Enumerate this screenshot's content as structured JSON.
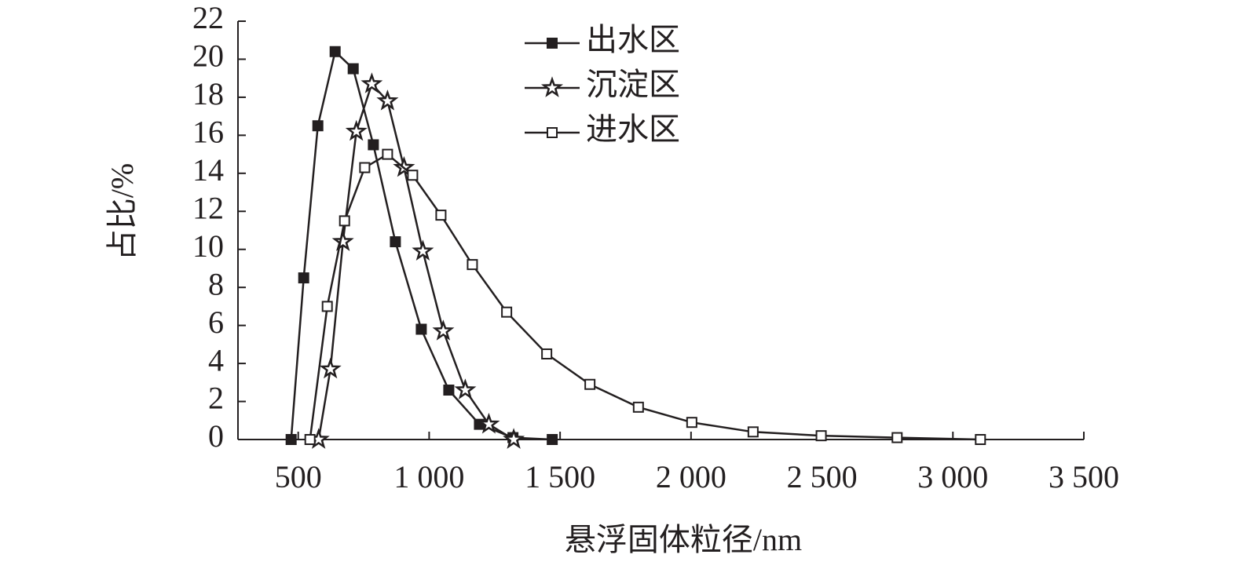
{
  "chart_data": {
    "type": "line",
    "x_label": "悬浮固体粒径/nm",
    "y_label": "占比/%",
    "xlim": [
      270,
      3500
    ],
    "ylim": [
      0,
      22
    ],
    "xticks": [
      500,
      {
        "value": 1000,
        "label": "1 000"
      },
      {
        "value": 1500,
        "label": "1 500"
      },
      {
        "value": 2000,
        "label": "2 000"
      },
      {
        "value": 2500,
        "label": "2 500"
      },
      {
        "value": 3000,
        "label": "3 000"
      },
      {
        "value": 3500,
        "label": "3 500"
      }
    ],
    "yticks": [
      0,
      2,
      4,
      6,
      8,
      10,
      12,
      14,
      16,
      18,
      20,
      22
    ],
    "legend": "top-center",
    "series": [
      {
        "name": "出水区",
        "color": "#231f20",
        "marker": "filled-square",
        "x": [
          473,
          521,
          575,
          641,
          710,
          787,
          871,
          970,
          1075,
          1192,
          1320,
          1470
        ],
        "values": [
          0,
          8.5,
          16.5,
          20.4,
          19.5,
          15.5,
          10.4,
          5.8,
          2.6,
          0.8,
          0.1,
          0
        ]
      },
      {
        "name": "沉淀区",
        "color": "#231f20",
        "marker": "star",
        "x": [
          578,
          623,
          671,
          722,
          781,
          841,
          904,
          976,
          1054,
          1138,
          1228,
          1323
        ],
        "values": [
          0,
          3.7,
          10.4,
          16.2,
          18.7,
          17.8,
          14.3,
          9.9,
          5.7,
          2.6,
          0.8,
          0
        ]
      },
      {
        "name": "进水区",
        "color": "#231f20",
        "marker": "open-square",
        "x": [
          545,
          611,
          677,
          754,
          841,
          937,
          1045,
          1165,
          1296,
          1449,
          1614,
          1799,
          2003,
          2237,
          2497,
          2787,
          3105
        ],
        "values": [
          0,
          7.0,
          11.5,
          14.3,
          15.0,
          13.9,
          11.8,
          9.2,
          6.7,
          4.5,
          2.9,
          1.7,
          0.9,
          0.4,
          0.2,
          0.1,
          0
        ]
      }
    ]
  }
}
